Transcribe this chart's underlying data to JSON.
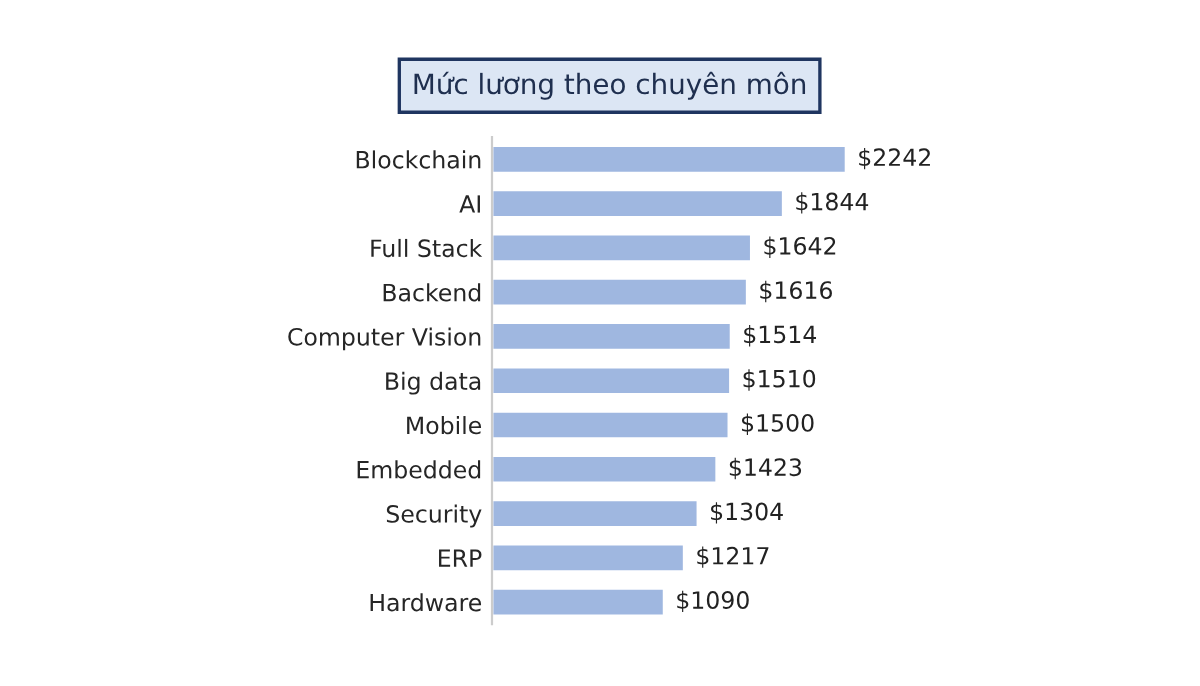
{
  "chart_data": {
    "type": "bar",
    "orientation": "horizontal",
    "title": "Mức lương theo chuyên môn",
    "categories": [
      "Blockchain",
      "AI",
      "Full Stack",
      "Backend",
      "Computer Vision",
      "Big data",
      "Mobile",
      "Embedded",
      "Security",
      "ERP",
      "Hardware"
    ],
    "values": [
      2242,
      1844,
      1642,
      1616,
      1514,
      1510,
      1500,
      1423,
      1304,
      1217,
      1090
    ],
    "value_labels": [
      "$2242",
      "$1844",
      "$1642",
      "$1616",
      "$1514",
      "$1510",
      "$1500",
      "$1423",
      "$1304",
      "$1217",
      "$1090"
    ],
    "color": "#9fb7e0",
    "tick_labels": "y",
    "grid": false,
    "legend": false
  }
}
